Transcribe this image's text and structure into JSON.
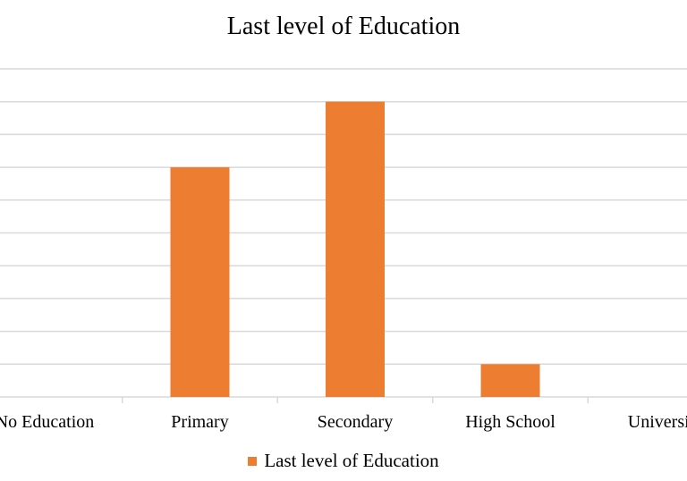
{
  "chart_data": {
    "type": "bar",
    "title": "Last level of Education",
    "categories": [
      "No Education",
      "Primary",
      "Secondary",
      "High School",
      "University"
    ],
    "series": [
      {
        "name": "Last level of Education",
        "values": [
          0,
          7,
          9,
          1,
          0
        ],
        "color": "#ED7D31"
      }
    ],
    "ylim": [
      0,
      10
    ],
    "grid": true,
    "legend_position": "bottom",
    "gridline_color": "#d9d9d9"
  }
}
